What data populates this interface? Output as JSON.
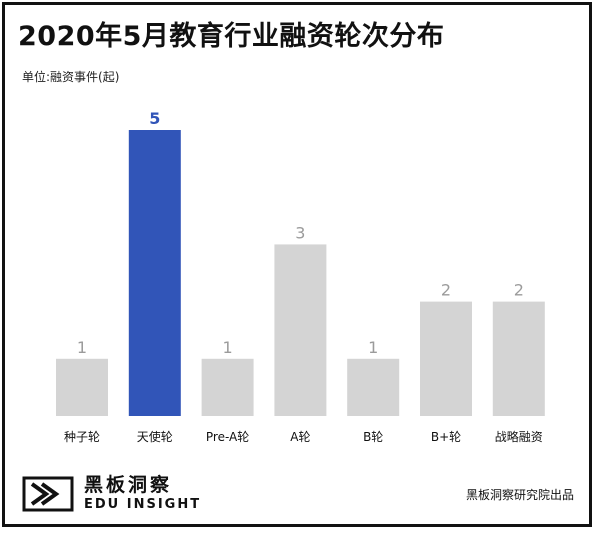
{
  "title": "2020年5月教育行业融资轮次分布",
  "unit_label": "单位:融资事件(起)",
  "logo": {
    "name_cn": "黑板洞察",
    "name_en": "EDU INSIGHT"
  },
  "source": "黑板洞察研究院出品",
  "colors": {
    "highlight": "#3155B8",
    "bar": "#D4D4D4",
    "highlight_label": "#3155B8",
    "label": "#9B9B9B"
  },
  "chart_data": {
    "type": "bar",
    "title": "2020年5月教育行业融资轮次分布",
    "ylabel": "单位:融资事件(起)",
    "categories": [
      "种子轮",
      "天使轮",
      "Pre-A轮",
      "A轮",
      "B轮",
      "B+轮",
      "战略融资"
    ],
    "values": [
      1,
      5,
      1,
      3,
      1,
      2,
      2
    ],
    "highlight_index": 1,
    "ylim": [
      0,
      5
    ],
    "grid": false
  }
}
